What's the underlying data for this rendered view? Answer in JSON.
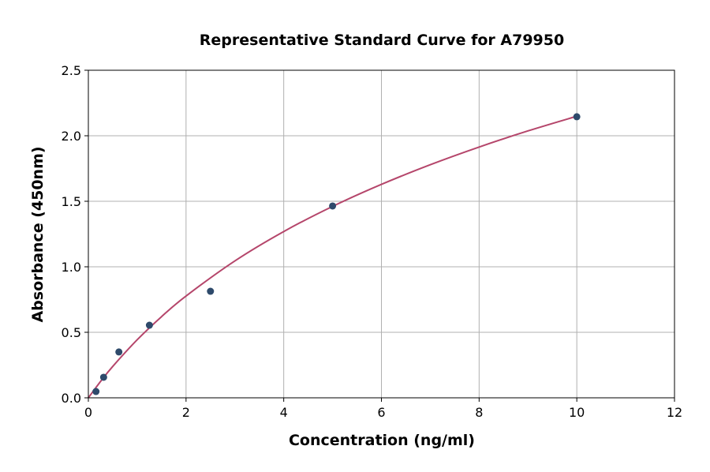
{
  "chart_data": {
    "type": "scatter",
    "title": "Representative Standard Curve for A79950",
    "xlabel": "Concentration (ng/ml)",
    "ylabel": "Absorbance (450nm)",
    "xlim": [
      0,
      12
    ],
    "ylim": [
      0,
      2.5
    ],
    "xticks": [
      0,
      2,
      4,
      6,
      8,
      10,
      12
    ],
    "xtick_labels": [
      "0",
      "2",
      "4",
      "6",
      "8",
      "10",
      "12"
    ],
    "yticks": [
      0,
      0.5,
      1.0,
      1.5,
      2.0,
      2.5
    ],
    "ytick_labels": [
      "0.0",
      "0.5",
      "1.0",
      "1.5",
      "2.0",
      "2.5"
    ],
    "grid": true,
    "points": {
      "x": [
        0.156,
        0.313,
        0.625,
        1.25,
        2.5,
        5,
        10
      ],
      "y": [
        0.048,
        0.157,
        0.35,
        0.554,
        0.813,
        1.464,
        2.145
      ],
      "color": "#2e4a6b"
    },
    "fit_curve": {
      "x": [
        0,
        0.25,
        0.5,
        1,
        1.5,
        2,
        3,
        4,
        5,
        6,
        7,
        8,
        9,
        10
      ],
      "y": [
        0,
        0.125,
        0.24,
        0.443,
        0.62,
        0.777,
        1.045,
        1.269,
        1.461,
        1.629,
        1.779,
        1.914,
        2.037,
        2.149
      ],
      "color": "#b5466b"
    }
  }
}
